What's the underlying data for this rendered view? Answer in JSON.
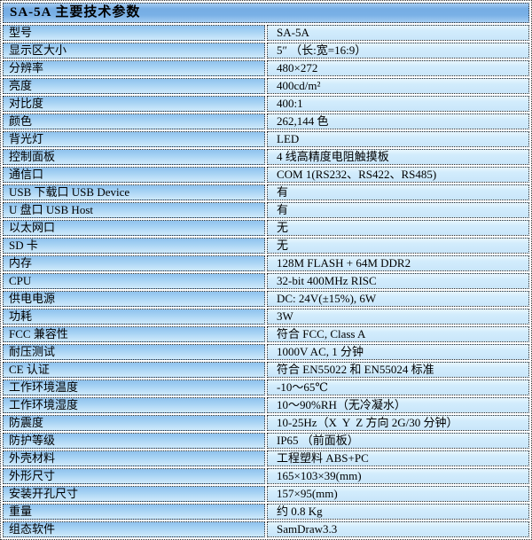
{
  "table": {
    "title": "SA-5A 主要技术参数",
    "rows": [
      {
        "label": "型号",
        "value": "SA-5A"
      },
      {
        "label": "显示区大小",
        "value": "5″ （长:宽=16:9）"
      },
      {
        "label": "分辨率",
        "value": "480×272"
      },
      {
        "label": "亮度",
        "value": "400cd/m²"
      },
      {
        "label": "对比度",
        "value": "400:1"
      },
      {
        "label": "颜色",
        "value": "262,144 色"
      },
      {
        "label": "背光灯",
        "value": "LED"
      },
      {
        "label": "控制面板",
        "value": "4 线高精度电阻触摸板"
      },
      {
        "label": "通信口",
        "value": "COM 1(RS232、RS422、RS485)"
      },
      {
        "label": "USB 下载口 USB Device",
        "value": "有"
      },
      {
        "label": "U 盘口 USB Host",
        "value": "有"
      },
      {
        "label": "以太网口",
        "value": "无"
      },
      {
        "label": "SD 卡",
        "value": "无"
      },
      {
        "label": "内存",
        "value": "128M FLASH + 64M DDR2"
      },
      {
        "label": "CPU",
        "value": "32-bit 400MHz RISC"
      },
      {
        "label": "供电电源",
        "value": "DC: 24V(±15%), 6W"
      },
      {
        "label": "功耗",
        "value": "3W"
      },
      {
        "label": "FCC 兼容性",
        "value": "符合 FCC, Class A"
      },
      {
        "label": "耐压测试",
        "value": "1000V AC, 1 分钟"
      },
      {
        "label": "CE 认证",
        "value": "符合 EN55022 和 EN55024 标准"
      },
      {
        "label": "工作环境温度",
        "value": "-10～65℃"
      },
      {
        "label": "工作环境湿度",
        "value": "10～90%RH（无冷凝水）"
      },
      {
        "label": "防震度",
        "value": "10-25Hz（X  Y  Z 方向 2G/30 分钟）"
      },
      {
        "label": "防护等级",
        "value": "IP65 （前面板）"
      },
      {
        "label": "外壳材料",
        "value": "工程塑料 ABS+PC"
      },
      {
        "label": "外形尺寸",
        "value": "165×103×39(mm)"
      },
      {
        "label": "安装开孔尺寸",
        "value": "157×95(mm)"
      },
      {
        "label": "重量",
        "value": "约 0.8 Kg"
      },
      {
        "label": "组态软件",
        "value": "SamDraw3.3"
      }
    ],
    "colors": {
      "header_bg_top": "#76ADE4",
      "header_bg_bottom": "#A4CDF2",
      "label_bg_top": "#8EC2EE",
      "label_bg_bottom": "#CFEAFB",
      "value_bg": "#CDE9FB",
      "border": "#2B2B2B",
      "text": "#000000"
    }
  }
}
